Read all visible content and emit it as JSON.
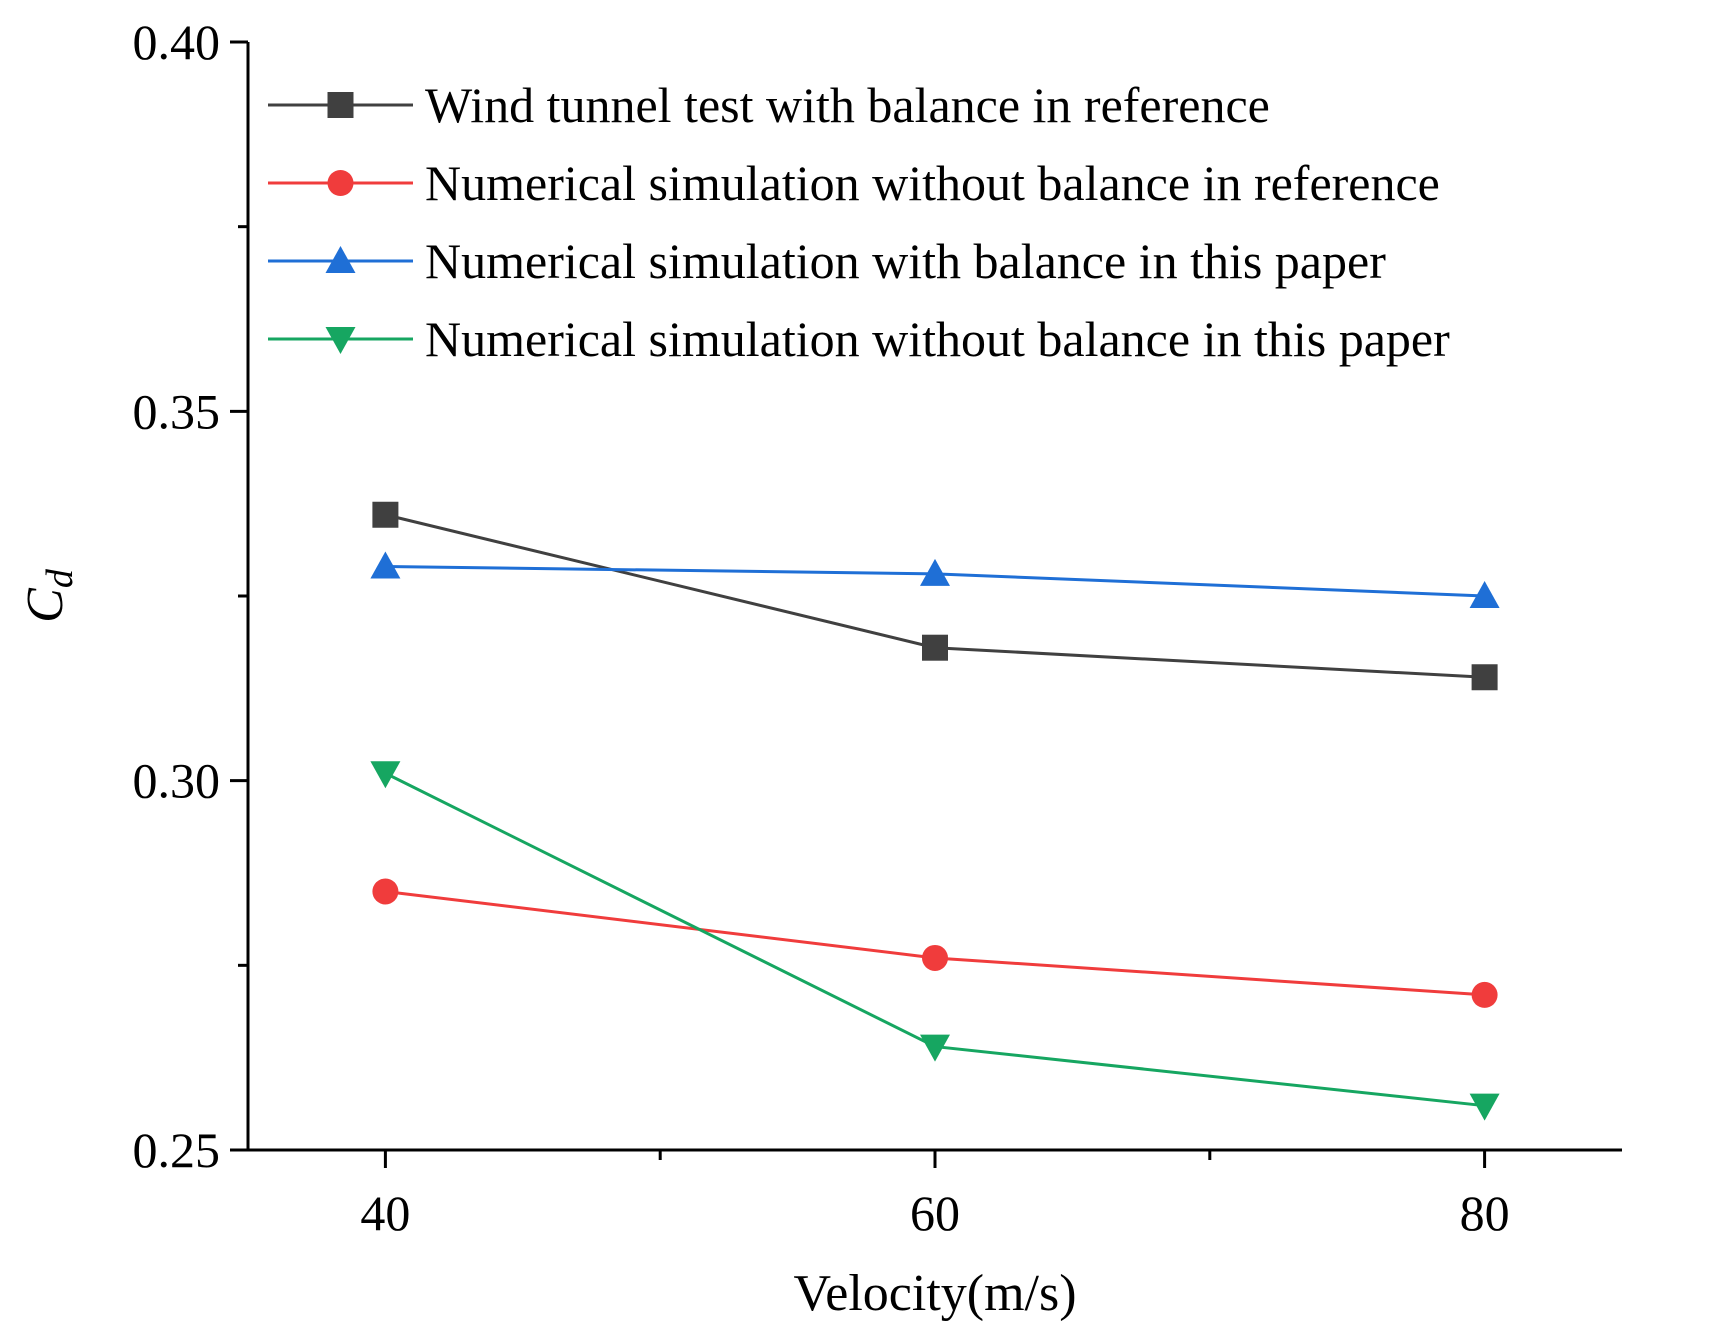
{
  "chart_data": {
    "type": "line",
    "xlabel": "Velocity(m/s)",
    "ylabel_main": "C",
    "ylabel_sub": "d",
    "x": [
      40,
      60,
      80
    ],
    "xlim": [
      35,
      85
    ],
    "ylim": [
      0.25,
      0.4
    ],
    "xticks": [
      40,
      60,
      80
    ],
    "xtick_labels": [
      "40",
      "60",
      "80"
    ],
    "yticks": [
      0.25,
      0.3,
      0.35,
      0.4
    ],
    "ytick_labels": [
      "0.25",
      "0.30",
      "0.35",
      "0.40"
    ],
    "grid": false,
    "legend_position": "top-right",
    "series": [
      {
        "name": "Wind tunnel test with balance in reference",
        "values": [
          0.336,
          0.318,
          0.314
        ],
        "color": "#404040",
        "marker": "square"
      },
      {
        "name": "Numerical simulation without balance in reference",
        "values": [
          0.285,
          0.276,
          0.271
        ],
        "color": "#f03c3c",
        "marker": "circle"
      },
      {
        "name": "Numerical simulation with balance in this paper",
        "values": [
          0.329,
          0.328,
          0.325
        ],
        "color": "#1f6fd6",
        "marker": "triangle-up"
      },
      {
        "name": "Numerical simulation without balance in this paper",
        "values": [
          0.301,
          0.264,
          0.256
        ],
        "color": "#16a661",
        "marker": "triangle-down"
      }
    ]
  }
}
